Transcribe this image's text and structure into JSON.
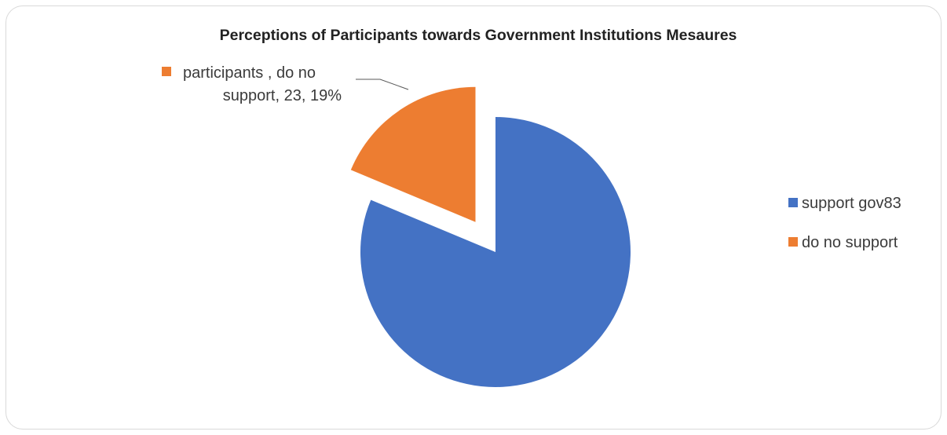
{
  "colors": {
    "support": "#4472c4",
    "no_support": "#ed7d31"
  },
  "chart_data": {
    "type": "pie",
    "title": "Perceptions of Participants towards Government Institutions Mesaures",
    "slices": [
      {
        "name": "support gov83",
        "value": 100,
        "color": "#4472c4"
      },
      {
        "name": "do no support",
        "value": 23,
        "color": "#ed7d31",
        "exploded": true
      }
    ],
    "legend": [
      "support gov83",
      "do no support"
    ],
    "legend_position": "right",
    "data_labels": [
      {
        "line1": "participants , do no",
        "line2": "support, 23, 19%"
      }
    ]
  }
}
